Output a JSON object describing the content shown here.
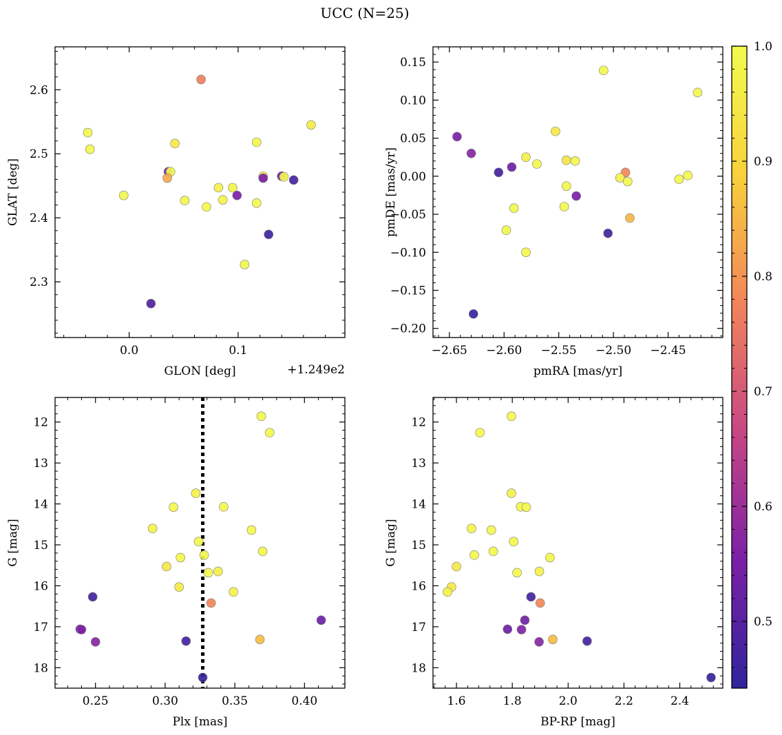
{
  "figure": {
    "title": "UCC (N=25)"
  },
  "chart_data": [
    {
      "type": "scatter",
      "xlabel": "GLON [deg]",
      "ylabel": "GLAT [deg]",
      "x_offset_label": "+1.249e2",
      "xlim": [
        -0.068,
        0.198
      ],
      "ylim": [
        2.213,
        2.667
      ],
      "y_inverted": false,
      "xticks": [
        0.0,
        0.1
      ],
      "xtick_labels": [
        "0.0",
        "0.1"
      ],
      "yticks": [
        2.3,
        2.4,
        2.5,
        2.6
      ],
      "ytick_labels": [
        "2.3",
        "2.4",
        "2.5",
        "2.6"
      ],
      "points": [
        {
          "x": 0.066,
          "y": 2.616,
          "c": 0.77
        },
        {
          "x": 0.167,
          "y": 2.545,
          "c": 0.96
        },
        {
          "x": -0.038,
          "y": 2.533,
          "c": 0.99
        },
        {
          "x": 0.117,
          "y": 2.518,
          "c": 0.99
        },
        {
          "x": 0.042,
          "y": 2.516,
          "c": 0.95
        },
        {
          "x": -0.036,
          "y": 2.507,
          "c": 0.99
        },
        {
          "x": 0.036,
          "y": 2.472,
          "c": 0.56
        },
        {
          "x": 0.038,
          "y": 2.472,
          "c": 0.99
        },
        {
          "x": 0.123,
          "y": 2.465,
          "c": 0.99
        },
        {
          "x": 0.14,
          "y": 2.465,
          "c": 0.53
        },
        {
          "x": 0.142,
          "y": 2.464,
          "c": 0.99
        },
        {
          "x": 0.035,
          "y": 2.462,
          "c": 0.83
        },
        {
          "x": 0.123,
          "y": 2.462,
          "c": 0.55
        },
        {
          "x": 0.151,
          "y": 2.459,
          "c": 0.47
        },
        {
          "x": 0.082,
          "y": 2.447,
          "c": 0.97
        },
        {
          "x": 0.095,
          "y": 2.447,
          "c": 0.98
        },
        {
          "x": -0.005,
          "y": 2.435,
          "c": 0.99
        },
        {
          "x": 0.099,
          "y": 2.435,
          "c": 0.55
        },
        {
          "x": 0.051,
          "y": 2.427,
          "c": 0.99
        },
        {
          "x": 0.086,
          "y": 2.428,
          "c": 0.98
        },
        {
          "x": 0.117,
          "y": 2.423,
          "c": 0.99
        },
        {
          "x": 0.071,
          "y": 2.417,
          "c": 0.99
        },
        {
          "x": 0.128,
          "y": 2.374,
          "c": 0.46
        },
        {
          "x": 0.106,
          "y": 2.327,
          "c": 0.99
        },
        {
          "x": 0.02,
          "y": 2.266,
          "c": 0.49
        }
      ]
    },
    {
      "type": "scatter",
      "xlabel": "pmRA [mas/yr]",
      "ylabel": "pmDE [mas/yr]",
      "xlim": [
        -2.665,
        -2.4
      ],
      "ylim": [
        -0.212,
        0.17
      ],
      "y_inverted": false,
      "xticks": [
        -2.65,
        -2.6,
        -2.55,
        -2.5,
        -2.45
      ],
      "xtick_labels": [
        "−2.65",
        "−2.60",
        "−2.55",
        "−2.50",
        "−2.45"
      ],
      "yticks": [
        -0.2,
        -0.15,
        -0.1,
        -0.05,
        0.0,
        0.05,
        0.1,
        0.15
      ],
      "ytick_labels": [
        "−0.20",
        "−0.15",
        "−0.10",
        "−0.05",
        "0.00",
        "0.05",
        "0.10",
        "0.15"
      ],
      "points": [
        {
          "x": -2.509,
          "y": 0.139,
          "c": 0.99
        },
        {
          "x": -2.423,
          "y": 0.11,
          "c": 0.99
        },
        {
          "x": -2.553,
          "y": 0.059,
          "c": 0.95
        },
        {
          "x": -2.643,
          "y": 0.052,
          "c": 0.55
        },
        {
          "x": -2.63,
          "y": 0.03,
          "c": 0.57
        },
        {
          "x": -2.58,
          "y": 0.025,
          "c": 0.97
        },
        {
          "x": -2.543,
          "y": 0.021,
          "c": 0.94
        },
        {
          "x": -2.535,
          "y": 0.02,
          "c": 0.99
        },
        {
          "x": -2.57,
          "y": 0.016,
          "c": 0.99
        },
        {
          "x": -2.593,
          "y": 0.012,
          "c": 0.53
        },
        {
          "x": -2.605,
          "y": 0.005,
          "c": 0.47
        },
        {
          "x": -2.489,
          "y": 0.005,
          "c": 0.78
        },
        {
          "x": -2.432,
          "y": 0.001,
          "c": 0.99
        },
        {
          "x": -2.494,
          "y": -0.002,
          "c": 0.97
        },
        {
          "x": -2.44,
          "y": -0.004,
          "c": 0.99
        },
        {
          "x": -2.487,
          "y": -0.007,
          "c": 0.99
        },
        {
          "x": -2.543,
          "y": -0.013,
          "c": 0.99
        },
        {
          "x": -2.534,
          "y": -0.026,
          "c": 0.55
        },
        {
          "x": -2.545,
          "y": -0.04,
          "c": 0.99
        },
        {
          "x": -2.591,
          "y": -0.042,
          "c": 0.99
        },
        {
          "x": -2.485,
          "y": -0.055,
          "c": 0.85
        },
        {
          "x": -2.598,
          "y": -0.071,
          "c": 0.99
        },
        {
          "x": -2.505,
          "y": -0.075,
          "c": 0.47
        },
        {
          "x": -2.58,
          "y": -0.1,
          "c": 0.99
        },
        {
          "x": -2.628,
          "y": -0.181,
          "c": 0.46
        }
      ]
    },
    {
      "type": "scatter",
      "xlabel": "Plx [mas]",
      "ylabel": "G [mag]",
      "xlim": [
        0.221,
        0.429
      ],
      "ylim": [
        18.5,
        11.4
      ],
      "y_inverted": true,
      "xticks": [
        0.25,
        0.3,
        0.35,
        0.4
      ],
      "xtick_labels": [
        "0.25",
        "0.30",
        "0.35",
        "0.40"
      ],
      "yticks": [
        12,
        13,
        14,
        15,
        16,
        17,
        18
      ],
      "ytick_labels": [
        "12",
        "13",
        "14",
        "15",
        "16",
        "17",
        "18"
      ],
      "vline": {
        "x": 0.327,
        "style": "dotted",
        "color": "#000000"
      },
      "points": [
        {
          "x": 0.369,
          "y": 11.86,
          "c": 0.99
        },
        {
          "x": 0.375,
          "y": 12.26,
          "c": 0.99
        },
        {
          "x": 0.322,
          "y": 13.74,
          "c": 0.97
        },
        {
          "x": 0.306,
          "y": 14.08,
          "c": 0.99
        },
        {
          "x": 0.342,
          "y": 14.07,
          "c": 0.99
        },
        {
          "x": 0.291,
          "y": 14.6,
          "c": 0.98
        },
        {
          "x": 0.362,
          "y": 14.64,
          "c": 0.99
        },
        {
          "x": 0.324,
          "y": 14.92,
          "c": 0.99
        },
        {
          "x": 0.37,
          "y": 15.16,
          "c": 0.99
        },
        {
          "x": 0.328,
          "y": 15.25,
          "c": 0.99
        },
        {
          "x": 0.311,
          "y": 15.31,
          "c": 0.99
        },
        {
          "x": 0.301,
          "y": 15.53,
          "c": 0.95
        },
        {
          "x": 0.338,
          "y": 15.65,
          "c": 0.97
        },
        {
          "x": 0.331,
          "y": 15.68,
          "c": 0.99
        },
        {
          "x": 0.31,
          "y": 16.03,
          "c": 0.95
        },
        {
          "x": 0.349,
          "y": 16.15,
          "c": 0.98
        },
        {
          "x": 0.248,
          "y": 16.27,
          "c": 0.47
        },
        {
          "x": 0.333,
          "y": 16.42,
          "c": 0.78
        },
        {
          "x": 0.412,
          "y": 16.84,
          "c": 0.53
        },
        {
          "x": 0.239,
          "y": 17.06,
          "c": 0.53
        },
        {
          "x": 0.24,
          "y": 17.07,
          "c": 0.56
        },
        {
          "x": 0.368,
          "y": 17.31,
          "c": 0.86
        },
        {
          "x": 0.315,
          "y": 17.35,
          "c": 0.47
        },
        {
          "x": 0.25,
          "y": 17.37,
          "c": 0.57
        },
        {
          "x": 0.327,
          "y": 18.24,
          "c": 0.45
        }
      ]
    },
    {
      "type": "scatter",
      "xlabel": "BP-RP [mag]",
      "ylabel": "G [mag]",
      "xlim": [
        1.516,
        2.554
      ],
      "ylim": [
        18.5,
        11.4
      ],
      "y_inverted": true,
      "xticks": [
        1.6,
        1.8,
        2.0,
        2.2,
        2.4
      ],
      "xtick_labels": [
        "1.6",
        "1.8",
        "2.0",
        "2.2",
        "2.4"
      ],
      "yticks": [
        12,
        13,
        14,
        15,
        16,
        17,
        18
      ],
      "ytick_labels": [
        "12",
        "13",
        "14",
        "15",
        "16",
        "17",
        "18"
      ],
      "points": [
        {
          "x": 1.797,
          "y": 11.86,
          "c": 0.99
        },
        {
          "x": 1.684,
          "y": 12.26,
          "c": 0.99
        },
        {
          "x": 1.797,
          "y": 13.74,
          "c": 0.97
        },
        {
          "x": 1.83,
          "y": 14.07,
          "c": 0.99
        },
        {
          "x": 1.85,
          "y": 14.08,
          "c": 0.99
        },
        {
          "x": 1.654,
          "y": 14.6,
          "c": 0.98
        },
        {
          "x": 1.725,
          "y": 14.64,
          "c": 0.99
        },
        {
          "x": 1.805,
          "y": 14.92,
          "c": 0.99
        },
        {
          "x": 1.732,
          "y": 15.16,
          "c": 0.99
        },
        {
          "x": 1.664,
          "y": 15.25,
          "c": 0.99
        },
        {
          "x": 1.935,
          "y": 15.31,
          "c": 0.99
        },
        {
          "x": 1.6,
          "y": 15.53,
          "c": 0.95
        },
        {
          "x": 1.897,
          "y": 15.65,
          "c": 0.97
        },
        {
          "x": 1.817,
          "y": 15.68,
          "c": 0.99
        },
        {
          "x": 1.582,
          "y": 16.03,
          "c": 0.95
        },
        {
          "x": 1.568,
          "y": 16.15,
          "c": 0.98
        },
        {
          "x": 1.867,
          "y": 16.27,
          "c": 0.47
        },
        {
          "x": 1.9,
          "y": 16.42,
          "c": 0.78
        },
        {
          "x": 1.845,
          "y": 16.84,
          "c": 0.53
        },
        {
          "x": 1.783,
          "y": 17.06,
          "c": 0.53
        },
        {
          "x": 1.833,
          "y": 17.07,
          "c": 0.56
        },
        {
          "x": 1.945,
          "y": 17.31,
          "c": 0.86
        },
        {
          "x": 2.068,
          "y": 17.35,
          "c": 0.47
        },
        {
          "x": 1.896,
          "y": 17.37,
          "c": 0.57
        },
        {
          "x": 2.512,
          "y": 18.24,
          "c": 0.45
        }
      ]
    }
  ],
  "colorbar": {
    "colormap": "plasma",
    "range": [
      0.442,
      1.0
    ],
    "ticks": [
      0.5,
      0.6,
      0.7,
      0.8,
      0.9,
      1.0
    ],
    "tick_labels": [
      "0.5",
      "0.6",
      "0.7",
      "0.8",
      "0.9",
      "1.0"
    ],
    "colors": [
      "#30249b",
      "#7c20a7",
      "#c74784",
      "#f2845a",
      "#f8d13b",
      "#f2fb4f"
    ]
  }
}
